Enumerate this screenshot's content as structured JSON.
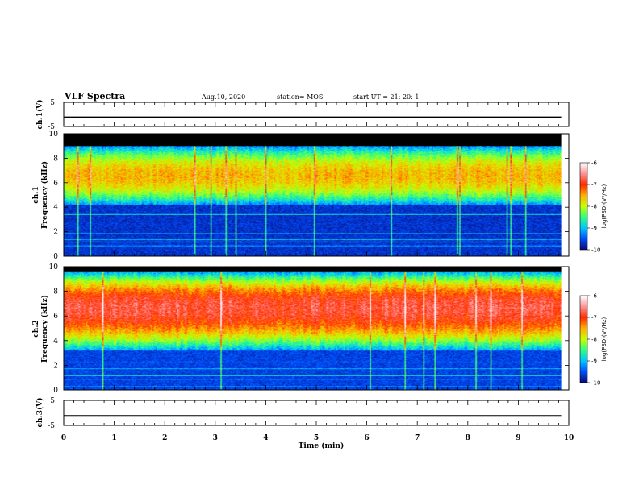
{
  "header": {
    "title": "VLF Spectra",
    "date": "Aug.10, 2020",
    "station": "station= MOS",
    "start": "start  UT =   21: 20: 1"
  },
  "colors": {
    "spec_background": "#000000",
    "colormap": [
      "#0a0a7a",
      "#0050ff",
      "#00c8ff",
      "#30ff80",
      "#c8ff00",
      "#ffb000",
      "#ff2a00",
      "#ff9090",
      "#ffffff"
    ]
  },
  "chart_data": [
    {
      "type": "line",
      "panel": "ch1-waveform",
      "ylabel": "ch.1(V)",
      "ylim": [
        -5,
        5
      ],
      "yticks": [
        "5",
        "-5"
      ],
      "xlim": [
        0,
        10
      ],
      "series": [
        {
          "x": [
            0,
            9.85
          ],
          "y": [
            -1.2,
            -1.2
          ]
        }
      ]
    },
    {
      "type": "heatmap",
      "panel": "ch1-spectrogram",
      "ylabel": "ch.1",
      "ylabel2": "Frequency (kHz)",
      "ylim": [
        0,
        10
      ],
      "yticks": [
        "0",
        "2",
        "4",
        "6",
        "8",
        "10"
      ],
      "xlim": [
        0,
        10
      ],
      "data_end_min": 9.85,
      "band_khz": [
        4.2,
        9.0
      ],
      "peak_khz": 6.6,
      "peak_log_psd": -7.6,
      "background_log_psd": -9.7,
      "colorbar": {
        "label": "log(PSD)(V²/Hz)",
        "range": [
          -10,
          -6
        ],
        "ticks": [
          "-10",
          "-9",
          "-8",
          "-7",
          "-6"
        ]
      }
    },
    {
      "type": "heatmap",
      "panel": "ch2-spectrogram",
      "ylabel": "ch.2",
      "ylabel2": "Frequency (kHz)",
      "ylim": [
        0,
        10
      ],
      "yticks": [
        "0",
        "2",
        "4",
        "6",
        "8",
        "10"
      ],
      "xlim": [
        0,
        10
      ],
      "data_end_min": 9.85,
      "band_khz": [
        3.2,
        9.6
      ],
      "peak_khz": 6.7,
      "peak_log_psd": -6.8,
      "background_log_psd": -9.6,
      "colorbar": {
        "label": "log(PSD)(V²/Hz)",
        "range": [
          -10,
          -6
        ],
        "ticks": [
          "-10",
          "-9",
          "-8",
          "-7",
          "-6"
        ]
      }
    },
    {
      "type": "line",
      "panel": "ch3-waveform",
      "ylabel": "ch.3(V)",
      "ylim": [
        -5,
        5
      ],
      "yticks": [
        "5",
        "-5"
      ],
      "xlim": [
        0,
        10
      ],
      "xlabel": "Time  (min)",
      "xticks": [
        "0",
        "1",
        "2",
        "3",
        "4",
        "5",
        "6",
        "7",
        "8",
        "9",
        "10"
      ],
      "series": [
        {
          "x": [
            0,
            9.85
          ],
          "y": [
            -1.2,
            -1.2
          ]
        }
      ]
    }
  ]
}
